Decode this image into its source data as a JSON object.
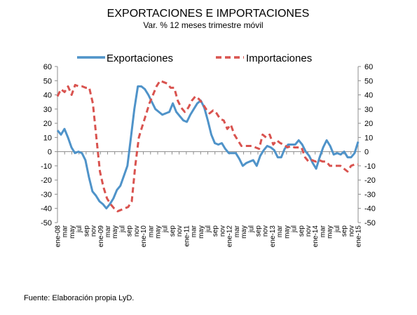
{
  "chart_data": {
    "type": "line",
    "title": "EXPORTACIONES E IMPORTACIONES",
    "subtitle": "Var. % 12 meses  trimestre móvil",
    "ylim": [
      -50,
      60
    ],
    "yticks": [
      60,
      50,
      40,
      30,
      20,
      10,
      0,
      -10,
      -20,
      -30,
      -40,
      -50
    ],
    "y2ticks": [
      60,
      50,
      40,
      30,
      20,
      10,
      0,
      -10,
      -20,
      -30,
      -40,
      -50
    ],
    "grid": false,
    "legend_position": "top",
    "x_labels": [
      "ene-08",
      "mar",
      "may",
      "jul",
      "sep",
      "nov",
      "ene-09",
      "mar",
      "may",
      "jul",
      "sep",
      "nov",
      "ene-10",
      "mar",
      "may",
      "jul",
      "sep",
      "nov",
      "ene-11",
      "mar",
      "may",
      "jul",
      "sep",
      "nov",
      "ene-12",
      "mar",
      "may",
      "jul",
      "sep",
      "nov",
      "ene-13",
      "mar",
      "may",
      "jul",
      "sep",
      "nov",
      "ene-14",
      "mar",
      "may",
      "jul",
      "sep",
      "nov",
      "ene-15"
    ],
    "series": [
      {
        "name": "Exportaciones",
        "color": "#4f93c9",
        "style": "solid",
        "values": [
          15,
          12,
          16,
          10,
          3,
          -1,
          0,
          -1,
          -6,
          -18,
          -28,
          -31,
          -35,
          -37,
          -40,
          -37,
          -33,
          -27,
          -24,
          -17,
          -10,
          10,
          30,
          46,
          46,
          44,
          40,
          35,
          30,
          28,
          26,
          27,
          28,
          34,
          28,
          25,
          22,
          21,
          26,
          30,
          34,
          36,
          31,
          22,
          12,
          6,
          5,
          6,
          2,
          -1,
          -1,
          -1,
          -5,
          -10,
          -8,
          -7,
          -6,
          -10,
          -3,
          1,
          4,
          3,
          1,
          -4,
          -4,
          2,
          5,
          5,
          5,
          8,
          5,
          0,
          -3,
          -8,
          -12,
          -4,
          3,
          8,
          4,
          -2,
          -1,
          -2,
          0,
          -4,
          -4,
          -1,
          7
        ]
      },
      {
        "name": "Importaciones",
        "color": "#d9534f",
        "style": "dashed",
        "values": [
          39,
          44,
          42,
          46,
          40,
          47,
          46,
          46,
          45,
          45,
          34,
          10,
          -14,
          -25,
          -33,
          -37,
          -40,
          -42,
          -41,
          -40,
          -39,
          -35,
          -10,
          10,
          18,
          26,
          34,
          40,
          46,
          50,
          49,
          48,
          45,
          45,
          36,
          31,
          28,
          31,
          36,
          39,
          37,
          34,
          30,
          27,
          29,
          27,
          23,
          22,
          16,
          19,
          12,
          8,
          4,
          4,
          4,
          4,
          3,
          2,
          12,
          10,
          12,
          5,
          8,
          6,
          5,
          3,
          4,
          3,
          3,
          3,
          -4,
          -7,
          -6,
          -7,
          -6,
          -7,
          -7,
          -10,
          -10,
          -10,
          -10,
          -12,
          -14,
          -10,
          -9,
          -9
        ]
      }
    ]
  },
  "source": "Fuente: Elaboración propia LyD."
}
